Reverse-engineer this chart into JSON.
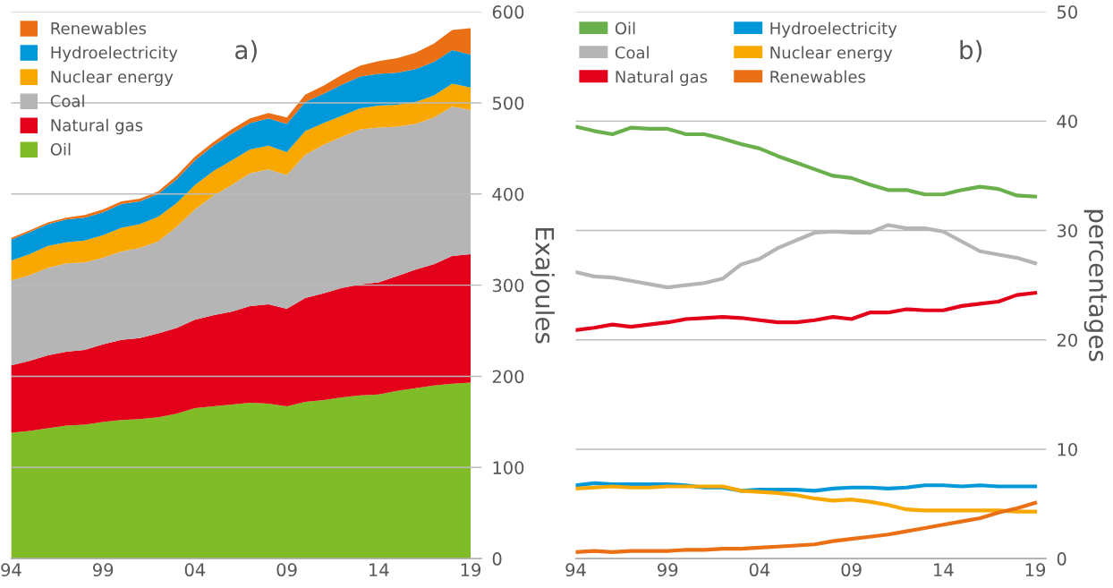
{
  "chart_data": [
    {
      "type": "area",
      "stacked": true,
      "title": "a)",
      "ylabel": "Exajoules",
      "legend": "top left",
      "grid": "y",
      "x": [
        1994,
        1995,
        1996,
        1997,
        1998,
        1999,
        2000,
        2001,
        2002,
        2003,
        2004,
        2005,
        2006,
        2007,
        2008,
        2009,
        2010,
        2011,
        2012,
        2013,
        2014,
        2015,
        2016,
        2017,
        2018,
        2019
      ],
      "xlim": [
        1994,
        2019.6
      ],
      "xticks": [
        {
          "value": 1994,
          "label": "94"
        },
        {
          "value": 1999,
          "label": "99"
        },
        {
          "value": 2004,
          "label": "04"
        },
        {
          "value": 2009,
          "label": "09"
        },
        {
          "value": 2014,
          "label": "14"
        },
        {
          "value": 2019,
          "label": "19"
        }
      ],
      "ylim": [
        0,
        600
      ],
      "yticks": [
        0,
        100,
        200,
        300,
        400,
        500,
        600
      ],
      "series": [
        {
          "name": "Oil",
          "color": "#80bc28",
          "values": [
            138,
            140,
            143,
            146,
            147,
            150,
            152,
            153,
            155,
            159,
            165,
            167,
            169,
            171,
            170,
            167,
            172,
            174,
            177,
            179,
            180,
            184,
            187,
            190,
            192,
            193
          ]
        },
        {
          "name": "Natural gas",
          "color": "#e2001a",
          "values": [
            74,
            77,
            80,
            81,
            82,
            85,
            88,
            89,
            92,
            94,
            97,
            100,
            102,
            106,
            109,
            107,
            114,
            117,
            120,
            122,
            123,
            126,
            130,
            133,
            140,
            141
          ]
        },
        {
          "name": "Coal",
          "color": "#b5b5b5",
          "values": [
            93,
            94,
            96,
            97,
            96,
            95,
            97,
            99,
            101,
            111,
            121,
            131,
            139,
            146,
            148,
            147,
            157,
            163,
            166,
            170,
            170,
            164,
            160,
            161,
            164,
            158
          ]
        },
        {
          "name": "Nuclear energy",
          "color": "#f8a800",
          "values": [
            22,
            23,
            24,
            23,
            24,
            25,
            26,
            26,
            27,
            26,
            27,
            27,
            27,
            26,
            26,
            25,
            26,
            24,
            23,
            23,
            24,
            24,
            24,
            24,
            25,
            25
          ]
        },
        {
          "name": "Hydroelectricity",
          "color": "#0098d8",
          "values": [
            23,
            24,
            24,
            25,
            25,
            25,
            26,
            25,
            25,
            26,
            27,
            28,
            29,
            29,
            30,
            31,
            32,
            32,
            34,
            35,
            35,
            35,
            36,
            37,
            37,
            36
          ]
        },
        {
          "name": "Renewables",
          "color": "#eb6f14",
          "values": [
            2,
            2,
            2,
            2,
            3,
            3,
            3,
            3,
            3,
            4,
            4,
            4,
            5,
            5,
            6,
            7,
            8,
            9,
            11,
            12,
            14,
            16,
            18,
            20,
            22,
            29
          ]
        }
      ]
    },
    {
      "type": "line",
      "title": "b)",
      "ylabel": "percentages",
      "legend": "top left",
      "grid": "y",
      "x": [
        1994,
        1995,
        1996,
        1997,
        1998,
        1999,
        2000,
        2001,
        2002,
        2003,
        2004,
        2005,
        2006,
        2007,
        2008,
        2009,
        2010,
        2011,
        2012,
        2013,
        2014,
        2015,
        2016,
        2017,
        2018,
        2019
      ],
      "xlim": [
        1994,
        2019.6
      ],
      "xticks": [
        {
          "value": 1994,
          "label": "94"
        },
        {
          "value": 1999,
          "label": "99"
        },
        {
          "value": 2004,
          "label": "04"
        },
        {
          "value": 2009,
          "label": "09"
        },
        {
          "value": 2014,
          "label": "14"
        },
        {
          "value": 2019,
          "label": "19"
        }
      ],
      "ylim": [
        0,
        50
      ],
      "yticks": [
        0,
        10,
        20,
        30,
        40,
        50
      ],
      "series": [
        {
          "name": "Oil",
          "color": "#6ab04c",
          "values": [
            39.5,
            39.1,
            38.8,
            39.4,
            39.3,
            39.3,
            38.8,
            38.8,
            38.4,
            37.9,
            37.5,
            36.8,
            36.2,
            35.6,
            35.0,
            34.8,
            34.2,
            33.7,
            33.7,
            33.3,
            33.3,
            33.7,
            34.0,
            33.8,
            33.2,
            33.1
          ]
        },
        {
          "name": "Coal",
          "color": "#b5b5b5",
          "values": [
            26.2,
            25.8,
            25.7,
            25.4,
            25.1,
            24.8,
            25.0,
            25.2,
            25.6,
            26.9,
            27.4,
            28.4,
            29.1,
            29.8,
            29.9,
            29.8,
            29.8,
            30.5,
            30.2,
            30.2,
            29.9,
            29.0,
            28.1,
            27.8,
            27.5,
            27.0
          ]
        },
        {
          "name": "Natural gas",
          "color": "#e2001a",
          "values": [
            20.9,
            21.1,
            21.4,
            21.2,
            21.4,
            21.6,
            21.9,
            22.0,
            22.1,
            22.0,
            21.8,
            21.6,
            21.6,
            21.8,
            22.1,
            21.9,
            22.5,
            22.5,
            22.8,
            22.7,
            22.7,
            23.1,
            23.3,
            23.5,
            24.1,
            24.3
          ]
        },
        {
          "name": "Hydroelectricity",
          "color": "#0098d8",
          "values": [
            6.7,
            6.9,
            6.8,
            6.8,
            6.8,
            6.8,
            6.7,
            6.5,
            6.5,
            6.2,
            6.3,
            6.3,
            6.3,
            6.2,
            6.4,
            6.5,
            6.5,
            6.4,
            6.5,
            6.7,
            6.7,
            6.6,
            6.7,
            6.6,
            6.6,
            6.6
          ]
        },
        {
          "name": "Nuclear energy",
          "color": "#f8a800",
          "values": [
            6.4,
            6.5,
            6.6,
            6.5,
            6.5,
            6.6,
            6.6,
            6.6,
            6.6,
            6.2,
            6.1,
            6.0,
            5.8,
            5.5,
            5.3,
            5.4,
            5.2,
            4.9,
            4.5,
            4.4,
            4.4,
            4.4,
            4.4,
            4.4,
            4.3,
            4.3
          ]
        },
        {
          "name": "Renewables",
          "color": "#eb6f14",
          "values": [
            0.6,
            0.7,
            0.6,
            0.7,
            0.7,
            0.7,
            0.8,
            0.8,
            0.9,
            0.9,
            1.0,
            1.1,
            1.2,
            1.3,
            1.6,
            1.8,
            2.0,
            2.2,
            2.5,
            2.8,
            3.1,
            3.4,
            3.7,
            4.2,
            4.6,
            5.1
          ]
        }
      ]
    }
  ]
}
